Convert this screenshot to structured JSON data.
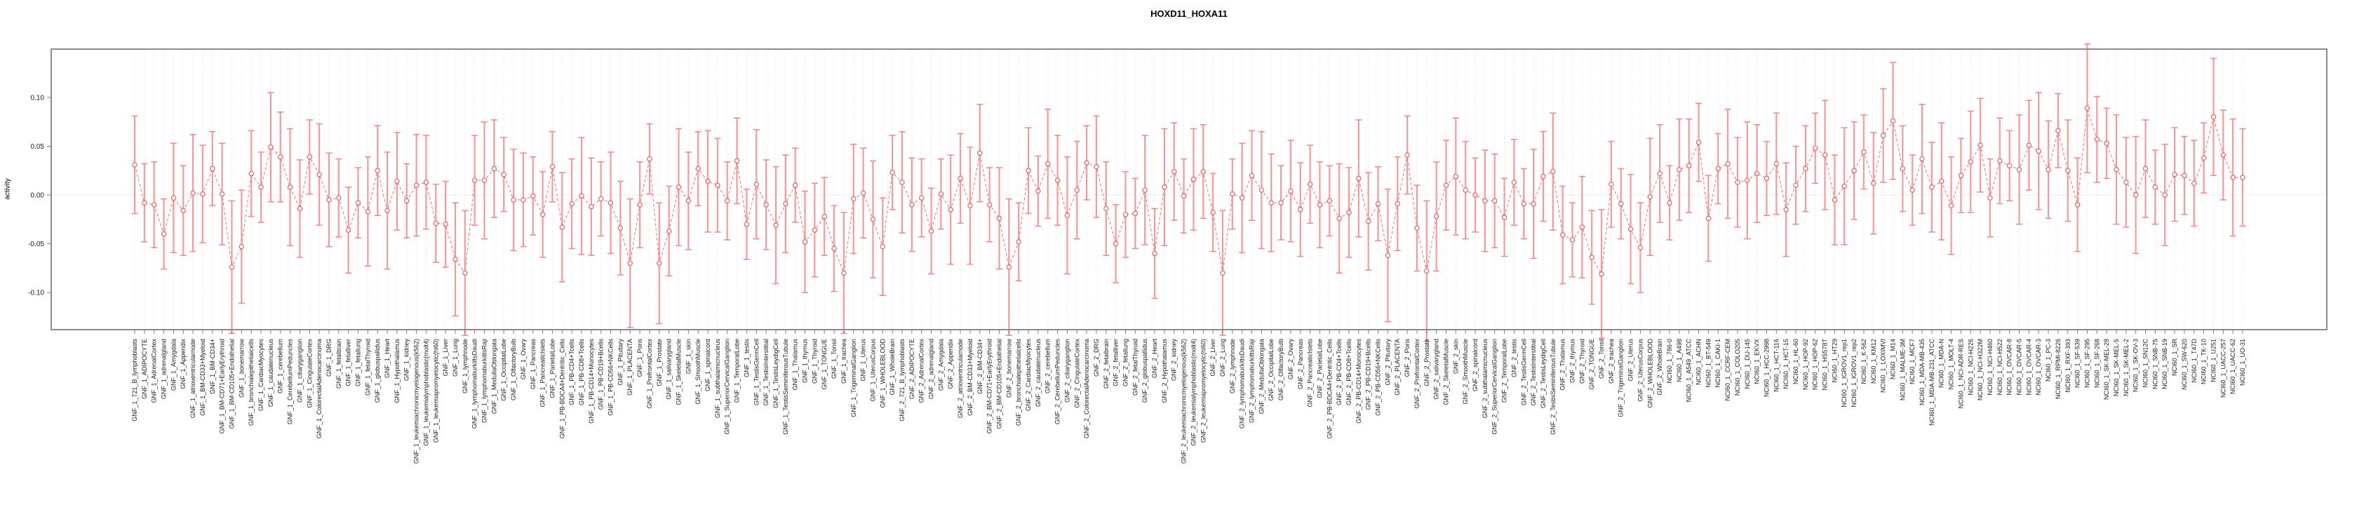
{
  "title": "HOXD11_HOXA11",
  "y_axis": {
    "label": "activity",
    "ticks": [
      0.1,
      0.05,
      0.0,
      -0.05,
      -0.1
    ],
    "tick_labels": [
      "0.10",
      "0.05",
      "0.00",
      "-0.05",
      "-0.10"
    ]
  },
  "colors": {
    "errorbar": "#f59a9a",
    "cap": "#f28b8b",
    "line": "#ef6f6f",
    "point_stroke": "#e86060",
    "point_fill": "#ffffff",
    "grid": "#d9d9d9",
    "zero_line": "#c8c8c8",
    "axis_box": "#8c8c8c",
    "tick": "#808080",
    "text": "#1a1a1a"
  },
  "chart_data": {
    "type": "line",
    "subtype": "points-with-error-bars",
    "title": "HOXD11_HOXA11",
    "xlabel": "",
    "ylabel": "activity",
    "ylim": [
      -0.138,
      0.15
    ],
    "yticks": [
      0.1,
      0.05,
      0.0,
      -0.05,
      -0.1
    ],
    "grid": "vertical dotted per category; dotted horizontal zero line",
    "legend": "none",
    "groups": [
      {
        "prefix": "GNF_1_",
        "items": [
          "721_B_lymphoblasts",
          "ADIPOCYTE",
          "AdrenalCortex",
          "adrenalgland",
          "Amygdala",
          "Appendix",
          "atrioventricularnode",
          "BM-CD33+Myeloid",
          "BM-CD34+",
          "BM-CD71+EarlyErythroid",
          "BM-CD105+Endothelial",
          "bonemarrow",
          "bronchialepithelialcells",
          "CardiacMyocytes",
          "caudatenucleus",
          "cerebellum",
          "CerebellumPeduncles",
          "ciliaryganglion",
          "CingulateCortex",
          "ColorectalAdenocarcinoma",
          "DRG",
          "fetalbrain",
          "fetalliver",
          "fetallung",
          "fetalThyroid",
          "globuspallidus",
          "Heart",
          "Hypothalamus",
          "kidney",
          "leukemiachronicmyelogenous(k562)",
          "leukemialymphoblastic(molt4)",
          "leukemiapromyelocytic(hl60)",
          "Liver",
          "Lung",
          "lymphnode",
          "lymphomaburkittsDaudi",
          "lymphomaburkittsRaji",
          "MedullaOblongata",
          "OccipitalLobe",
          "OlfactoryBulb",
          "Ovary",
          "Pancreas",
          "PancreaticIslets",
          "ParietalLobe",
          "PB-BDCA4+Dentritic_Cells",
          "PB-CD4+Tcells",
          "PB-CD8+Tcells",
          "PB-CD14+Monocytes",
          "PB-CD19+Bcells",
          "PB-CD56+NKCells",
          "Pituitary",
          "PLACENTA",
          "Pons",
          "PrefrontalCortex",
          "Prostate",
          "salivarygland",
          "SkeletalMuscle",
          "skin",
          "SmoothMuscle",
          "spinalcord",
          "subthalamicnucleus",
          "SuperiorCervicalGanglion",
          "TemporalLobe",
          "testis",
          "TestisGermCell",
          "TestisInterstitial",
          "TestisLeydigCell",
          "TestisSeminiferousTubule",
          "Thalamus",
          "thymus",
          "Thyroid",
          "TONGUE",
          "Tonsil",
          "trachea",
          "TrigeminalGanglion",
          "Uterus",
          "UterusCorpus",
          "WHOLEBLOOD",
          "WholeBrain"
        ]
      },
      {
        "prefix": "GNF_2_",
        "items": [
          "721_B_lymphoblasts",
          "ADIPOCYTE",
          "AdrenalCortex",
          "adrenalgland",
          "Amygdala",
          "Appendix",
          "atrioventricularnode",
          "BM-CD33+Myeloid",
          "BM-CD34+",
          "BM-CD71+EarlyErythroid",
          "BM-CD105+Endothelial",
          "bonemarrow",
          "bronchialepithelialcells",
          "CardiacMyocytes",
          "caudatenucleus",
          "cerebellum",
          "CerebellumPeduncles",
          "ciliaryganglion",
          "CingulateCortex",
          "ColorectalAdenocarcinoma",
          "DRG",
          "fetalbrain",
          "fetalliver",
          "fetallung",
          "fetalThyroid",
          "globuspallidus",
          "Heart",
          "Hypothalamus",
          "kidney",
          "leukemiachronicmyelogenous(k562)",
          "leukemialymphoblastic(molt4)",
          "leukemiapromyelocytic(hl60)",
          "Liver",
          "Lung",
          "lymphnode",
          "lymphomaburkittsDaudi",
          "lymphomaburkittsRaji",
          "MedullaOblongata",
          "OccipitalLobe",
          "OlfactoryBulb",
          "Ovary",
          "Pancreas",
          "PancreaticIslets",
          "ParietalLobe",
          "PB-BDCA4+Dentritic_Cells",
          "PB-CD4+Tcells",
          "PB-CD8+Tcells",
          "PB-CD14+Monocytes",
          "PB-CD19+Bcells",
          "PB-CD56+NKCells",
          "Pituitary",
          "PLACENTA",
          "Pons",
          "PrefrontalCortex",
          "Prostate",
          "salivarygland",
          "SkeletalMuscle",
          "skin",
          "SmoothMuscle",
          "spinalcord",
          "subthalamicnucleus",
          "SuperiorCervicalGanglion",
          "TemporalLobe",
          "testis",
          "TestisGermCell",
          "TestisInterstitial",
          "TestisLeydigCell",
          "TestisSeminiferousTubule",
          "Thalamus",
          "thymus",
          "Thyroid",
          "TONGUE",
          "Tonsil",
          "trachea",
          "TrigeminalGanglion",
          "Uterus",
          "UterusCorpus",
          "WHOLEBLOOD",
          "WholeBrain"
        ]
      },
      {
        "prefix": "NCI60_1_",
        "items": [
          "786-0",
          "A498",
          "A549_ATCC",
          "ACHN",
          "BT-549",
          "CAKI-1",
          "CCRF-CEM",
          "COLO205",
          "DU-145",
          "EKVX",
          "HCC-2998",
          "HCT-116",
          "HCT-15",
          "HL-60",
          "HOP-92",
          "HOP-62",
          "HS578T",
          "HT29",
          "IGROV1_rep1",
          "IGROV1_rep2",
          "K-562",
          "KM12",
          "LOXIMVI",
          "M14",
          "MALME-3M",
          "MCF7",
          "MDA-MB-435",
          "MDA-MB-231_ATCC",
          "MDA-N",
          "MOLT-4",
          "NCI-ADR-RES",
          "NCI-H226",
          "NCI-H322M",
          "NCI-H460",
          "NCI-H522",
          "OVCAR-8",
          "OVCAR-5",
          "OVCAR-4",
          "OVCAR-3",
          "PC-3",
          "RPMI-8226",
          "RXF-393",
          "SF-539",
          "SF-295",
          "SF-268",
          "SK-MEL-28",
          "SK-MEL-5",
          "SK-MEL-2",
          "SK-OV-3",
          "SN12C",
          "SNB-75",
          "SNB-19",
          "SR",
          "SW-620",
          "T47D",
          "TK-10",
          "U251",
          "UACC-257",
          "UACC-62",
          "UO-31"
        ]
      }
    ],
    "series": [
      {
        "name": "activity",
        "values": [
          0.031,
          -0.008,
          -0.01,
          -0.04,
          -0.003,
          -0.016,
          0.002,
          0.001,
          0.027,
          0.001,
          -0.074,
          -0.053,
          0.022,
          0.008,
          0.049,
          0.039,
          0.008,
          -0.014,
          0.039,
          0.021,
          -0.005,
          -0.003,
          -0.036,
          -0.008,
          -0.017,
          0.025,
          -0.016,
          0.014,
          -0.006,
          0.01,
          0.013,
          -0.029,
          -0.03,
          -0.066,
          -0.08,
          0.015,
          0.015,
          0.027,
          0.021,
          -0.005,
          -0.005,
          -0.001,
          -0.02,
          0.029,
          -0.033,
          -0.009,
          -0.001,
          -0.012,
          -0.004,
          -0.008,
          -0.034,
          -0.07,
          -0.01,
          0.037,
          -0.07,
          -0.037,
          0.008,
          -0.006,
          0.027,
          0.014,
          0.01,
          -0.006,
          0.035,
          -0.03,
          0.011,
          -0.01,
          -0.031,
          -0.009,
          0.01,
          -0.048,
          -0.036,
          -0.022,
          -0.055,
          -0.08,
          -0.004,
          0.002,
          -0.025,
          -0.053,
          0.023,
          0.013,
          -0.01,
          -0.003,
          -0.037,
          0.001,
          -0.015,
          0.017,
          -0.011,
          0.043,
          -0.01,
          -0.024,
          -0.074,
          -0.048,
          0.025,
          0.004,
          0.032,
          0.015,
          -0.021,
          0.005,
          0.033,
          0.029,
          -0.014,
          -0.05,
          -0.02,
          -0.019,
          0.005,
          -0.06,
          0.008,
          0.024,
          -0.001,
          0.016,
          0.024,
          -0.018,
          -0.08,
          0.001,
          -0.003,
          0.02,
          0.005,
          -0.008,
          -0.008,
          0.004,
          -0.015,
          0.011,
          -0.01,
          -0.006,
          -0.024,
          -0.018,
          0.017,
          -0.027,
          -0.009,
          -0.062,
          -0.009,
          0.041,
          -0.034,
          -0.078,
          -0.022,
          0.01,
          0.019,
          0.005,
          0.0,
          -0.006,
          -0.006,
          -0.023,
          0.013,
          -0.009,
          -0.009,
          0.019,
          0.024,
          -0.041,
          -0.046,
          -0.033,
          -0.064,
          -0.081,
          0.011,
          -0.009,
          -0.035,
          -0.054,
          -0.002,
          0.022,
          -0.008,
          0.026,
          0.03,
          0.054,
          -0.024,
          0.027,
          0.032,
          0.013,
          0.015,
          0.022,
          0.017,
          0.032,
          -0.015,
          0.01,
          0.027,
          0.048,
          0.041,
          -0.005,
          0.009,
          0.025,
          0.044,
          0.012,
          0.061,
          0.076,
          0.027,
          0.005,
          0.037,
          0.008,
          0.014,
          -0.011,
          0.02,
          0.034,
          0.051,
          -0.003,
          0.035,
          0.03,
          0.026,
          0.051,
          0.045,
          0.026,
          0.066,
          0.025,
          -0.01,
          0.089,
          0.057,
          0.053,
          0.026,
          0.013,
          0.0,
          0.027,
          0.008,
          0.0,
          0.021,
          0.02,
          0.012,
          0.038,
          0.08,
          0.041,
          0.018,
          0.018
        ],
        "errors": [
          0.05,
          0.04,
          0.044,
          0.036,
          0.056,
          0.046,
          0.06,
          0.05,
          0.038,
          0.052,
          0.068,
          0.058,
          0.044,
          0.036,
          0.056,
          0.046,
          0.06,
          0.05,
          0.038,
          0.052,
          0.048,
          0.04,
          0.044,
          0.036,
          0.056,
          0.046,
          0.06,
          0.05,
          0.038,
          0.052,
          0.048,
          0.04,
          0.044,
          0.058,
          0.064,
          0.046,
          0.06,
          0.05,
          0.038,
          0.052,
          0.048,
          0.04,
          0.044,
          0.036,
          0.056,
          0.046,
          0.06,
          0.05,
          0.038,
          0.052,
          0.048,
          0.066,
          0.044,
          0.036,
          0.062,
          0.046,
          0.06,
          0.05,
          0.038,
          0.052,
          0.048,
          0.04,
          0.044,
          0.036,
          0.056,
          0.046,
          0.06,
          0.05,
          0.038,
          0.052,
          0.048,
          0.04,
          0.044,
          0.062,
          0.056,
          0.046,
          0.06,
          0.05,
          0.038,
          0.052,
          0.048,
          0.04,
          0.044,
          0.036,
          0.056,
          0.046,
          0.06,
          0.05,
          0.038,
          0.052,
          0.07,
          0.04,
          0.044,
          0.036,
          0.056,
          0.046,
          0.06,
          0.05,
          0.038,
          0.052,
          0.048,
          0.04,
          0.044,
          0.036,
          0.056,
          0.046,
          0.06,
          0.05,
          0.038,
          0.052,
          0.048,
          0.04,
          0.064,
          0.036,
          0.056,
          0.046,
          0.06,
          0.05,
          0.038,
          0.052,
          0.048,
          0.04,
          0.044,
          0.036,
          0.056,
          0.046,
          0.06,
          0.05,
          0.038,
          0.068,
          0.048,
          0.04,
          0.044,
          0.072,
          0.056,
          0.046,
          0.06,
          0.05,
          0.038,
          0.052,
          0.048,
          0.04,
          0.044,
          0.036,
          0.056,
          0.046,
          0.06,
          0.05,
          0.038,
          0.052,
          0.048,
          0.066,
          0.044,
          0.036,
          0.056,
          0.046,
          0.06,
          0.05,
          0.038,
          0.052,
          0.048,
          0.04,
          0.044,
          0.036,
          0.056,
          0.046,
          0.06,
          0.05,
          0.038,
          0.052,
          0.048,
          0.04,
          0.044,
          0.036,
          0.056,
          0.046,
          0.06,
          0.05,
          0.038,
          0.052,
          0.048,
          0.06,
          0.044,
          0.036,
          0.056,
          0.046,
          0.06,
          0.05,
          0.038,
          0.052,
          0.048,
          0.04,
          0.044,
          0.036,
          0.056,
          0.046,
          0.06,
          0.05,
          0.038,
          0.052,
          0.048,
          0.066,
          0.044,
          0.036,
          0.056,
          0.046,
          0.06,
          0.05,
          0.038,
          0.052,
          0.048,
          0.04,
          0.044,
          0.036,
          0.06,
          0.046,
          0.06,
          0.05
        ]
      }
    ]
  }
}
